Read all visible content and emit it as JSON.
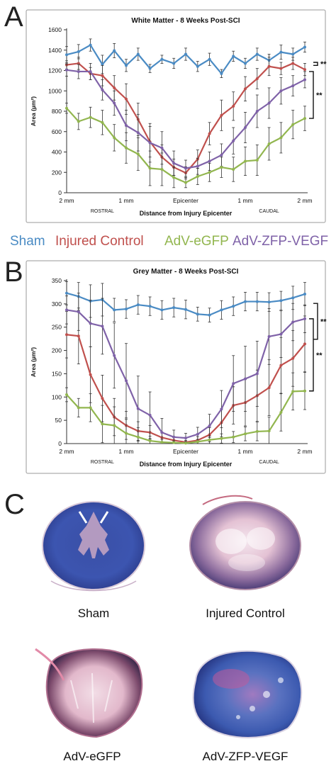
{
  "panels": {
    "a": "A",
    "b": "B",
    "c": "C"
  },
  "legend": [
    {
      "label": "Sham",
      "color": "#4a8bc4"
    },
    {
      "label": "Injured Control",
      "color": "#c0504d"
    },
    {
      "label": "AdV-eGFP",
      "color": "#92b64f"
    },
    {
      "label": "AdV-ZFP-VEGF",
      "color": "#7f62a8"
    }
  ],
  "x_tick_labels": [
    "2 mm",
    "1 mm",
    "Epicenter",
    "1 mm",
    "2 mm"
  ],
  "x_region_labels": [
    "ROSTRAL",
    "CAUDAL"
  ],
  "chart_data": [
    {
      "type": "line",
      "title": "White Matter - 8 Weeks Post-SCI",
      "xlabel": "Distance from Injury Epicenter",
      "ylabel": "Area (µm²)",
      "ylim": [
        0,
        1600
      ],
      "yticks": [
        0,
        200,
        400,
        600,
        800,
        1000,
        1200,
        1400,
        1600
      ],
      "x": [
        0,
        1,
        2,
        3,
        4,
        5,
        6,
        7,
        8,
        9,
        10,
        11,
        12,
        13,
        14,
        15,
        16,
        17,
        18,
        19,
        20
      ],
      "series": [
        {
          "name": "Sham",
          "color": "#4a8bc4",
          "values": [
            1355,
            1385,
            1450,
            1260,
            1395,
            1250,
            1360,
            1220,
            1310,
            1270,
            1360,
            1240,
            1310,
            1170,
            1340,
            1270,
            1360,
            1300,
            1380,
            1360,
            1430
          ],
          "errors": [
            80,
            70,
            60,
            90,
            70,
            60,
            60,
            40,
            40,
            50,
            60,
            50,
            60,
            40,
            50,
            50,
            60,
            60,
            70,
            60,
            50
          ]
        },
        {
          "name": "Injured Control",
          "color": "#c0504d",
          "values": [
            1255,
            1270,
            1170,
            1150,
            1030,
            920,
            720,
            500,
            350,
            250,
            195,
            330,
            580,
            760,
            850,
            1020,
            1120,
            1240,
            1220,
            1270,
            1210
          ],
          "errors": [
            40,
            60,
            60,
            100,
            120,
            150,
            160,
            150,
            120,
            80,
            60,
            90,
            110,
            150,
            140,
            120,
            100,
            90,
            60,
            60,
            60
          ]
        },
        {
          "name": "AdV-ZFP-VEGF",
          "color": "#7f62a8",
          "values": [
            1205,
            1190,
            1190,
            1010,
            880,
            660,
            590,
            490,
            440,
            290,
            240,
            260,
            310,
            370,
            510,
            640,
            800,
            880,
            1000,
            1050,
            1110
          ],
          "errors": [
            60,
            70,
            80,
            100,
            120,
            150,
            180,
            190,
            160,
            120,
            80,
            80,
            90,
            110,
            130,
            150,
            160,
            150,
            130,
            100,
            80
          ]
        },
        {
          "name": "AdV-eGFP",
          "color": "#92b64f",
          "values": [
            830,
            700,
            740,
            690,
            540,
            440,
            380,
            240,
            230,
            150,
            100,
            160,
            200,
            250,
            230,
            310,
            320,
            480,
            540,
            670,
            730
          ],
          "errors": [
            50,
            80,
            100,
            120,
            130,
            150,
            160,
            170,
            160,
            100,
            50,
            80,
            90,
            100,
            120,
            140,
            150,
            160,
            150,
            140,
            120
          ]
        }
      ],
      "significance": [
        "**",
        "**"
      ]
    },
    {
      "type": "line",
      "title": "Grey Matter - 8 Weeks Post-SCI",
      "xlabel": "Distance from Injury Epicenter",
      "ylabel": "Area (µm²)",
      "ylim": [
        0,
        350
      ],
      "yticks": [
        0,
        50,
        100,
        150,
        200,
        250,
        300,
        350
      ],
      "x": [
        0,
        1,
        2,
        3,
        4,
        5,
        6,
        7,
        8,
        9,
        10,
        11,
        12,
        13,
        14,
        15,
        16,
        17,
        18,
        19,
        20
      ],
      "series": [
        {
          "name": "Sham",
          "color": "#4a8bc4",
          "values": [
            323,
            316,
            306,
            309,
            287,
            289,
            298,
            295,
            287,
            292,
            288,
            278,
            276,
            287,
            295,
            305,
            305,
            304,
            307,
            313,
            321
          ],
          "errors": [
            25,
            30,
            35,
            35,
            25,
            20,
            20,
            20,
            20,
            20,
            20,
            15,
            15,
            20,
            20,
            20,
            20,
            20,
            20,
            25,
            25
          ]
        },
        {
          "name": "Injured Control",
          "color": "#c0504d",
          "values": [
            234,
            231,
            148,
            97,
            57,
            39,
            27,
            24,
            13,
            7,
            3,
            7,
            19,
            45,
            82,
            88,
            103,
            120,
            168,
            183,
            214
          ],
          "errors": [
            50,
            60,
            60,
            50,
            40,
            30,
            20,
            15,
            10,
            6,
            4,
            8,
            15,
            30,
            40,
            50,
            55,
            60,
            60,
            60,
            60
          ]
        },
        {
          "name": "AdV-ZFP-VEGF",
          "color": "#7f62a8",
          "values": [
            287,
            283,
            258,
            252,
            189,
            135,
            75,
            61,
            24,
            14,
            12,
            20,
            38,
            74,
            129,
            139,
            150,
            230,
            235,
            261,
            268
          ],
          "errors": [
            30,
            40,
            50,
            60,
            70,
            80,
            70,
            50,
            30,
            15,
            10,
            15,
            25,
            40,
            60,
            70,
            70,
            60,
            50,
            40,
            30
          ]
        },
        {
          "name": "AdV-eGFP",
          "color": "#92b64f",
          "values": [
            105,
            77,
            77,
            42,
            39,
            22,
            14,
            6,
            3,
            2,
            1,
            4,
            8,
            11,
            14,
            21,
            26,
            27,
            67,
            112,
            113
          ],
          "errors": [
            15,
            20,
            30,
            40,
            40,
            30,
            20,
            10,
            6,
            4,
            3,
            5,
            8,
            10,
            12,
            15,
            20,
            30,
            40,
            40,
            40
          ]
        }
      ],
      "significance": [
        "**",
        "**"
      ]
    }
  ],
  "micrographs": [
    {
      "label": "Sham",
      "palette": "blue"
    },
    {
      "label": "Injured Control",
      "palette": "pink"
    },
    {
      "label": "AdV-eGFP",
      "palette": "pink"
    },
    {
      "label": "AdV-ZFP-VEGF",
      "palette": "mixed"
    }
  ]
}
